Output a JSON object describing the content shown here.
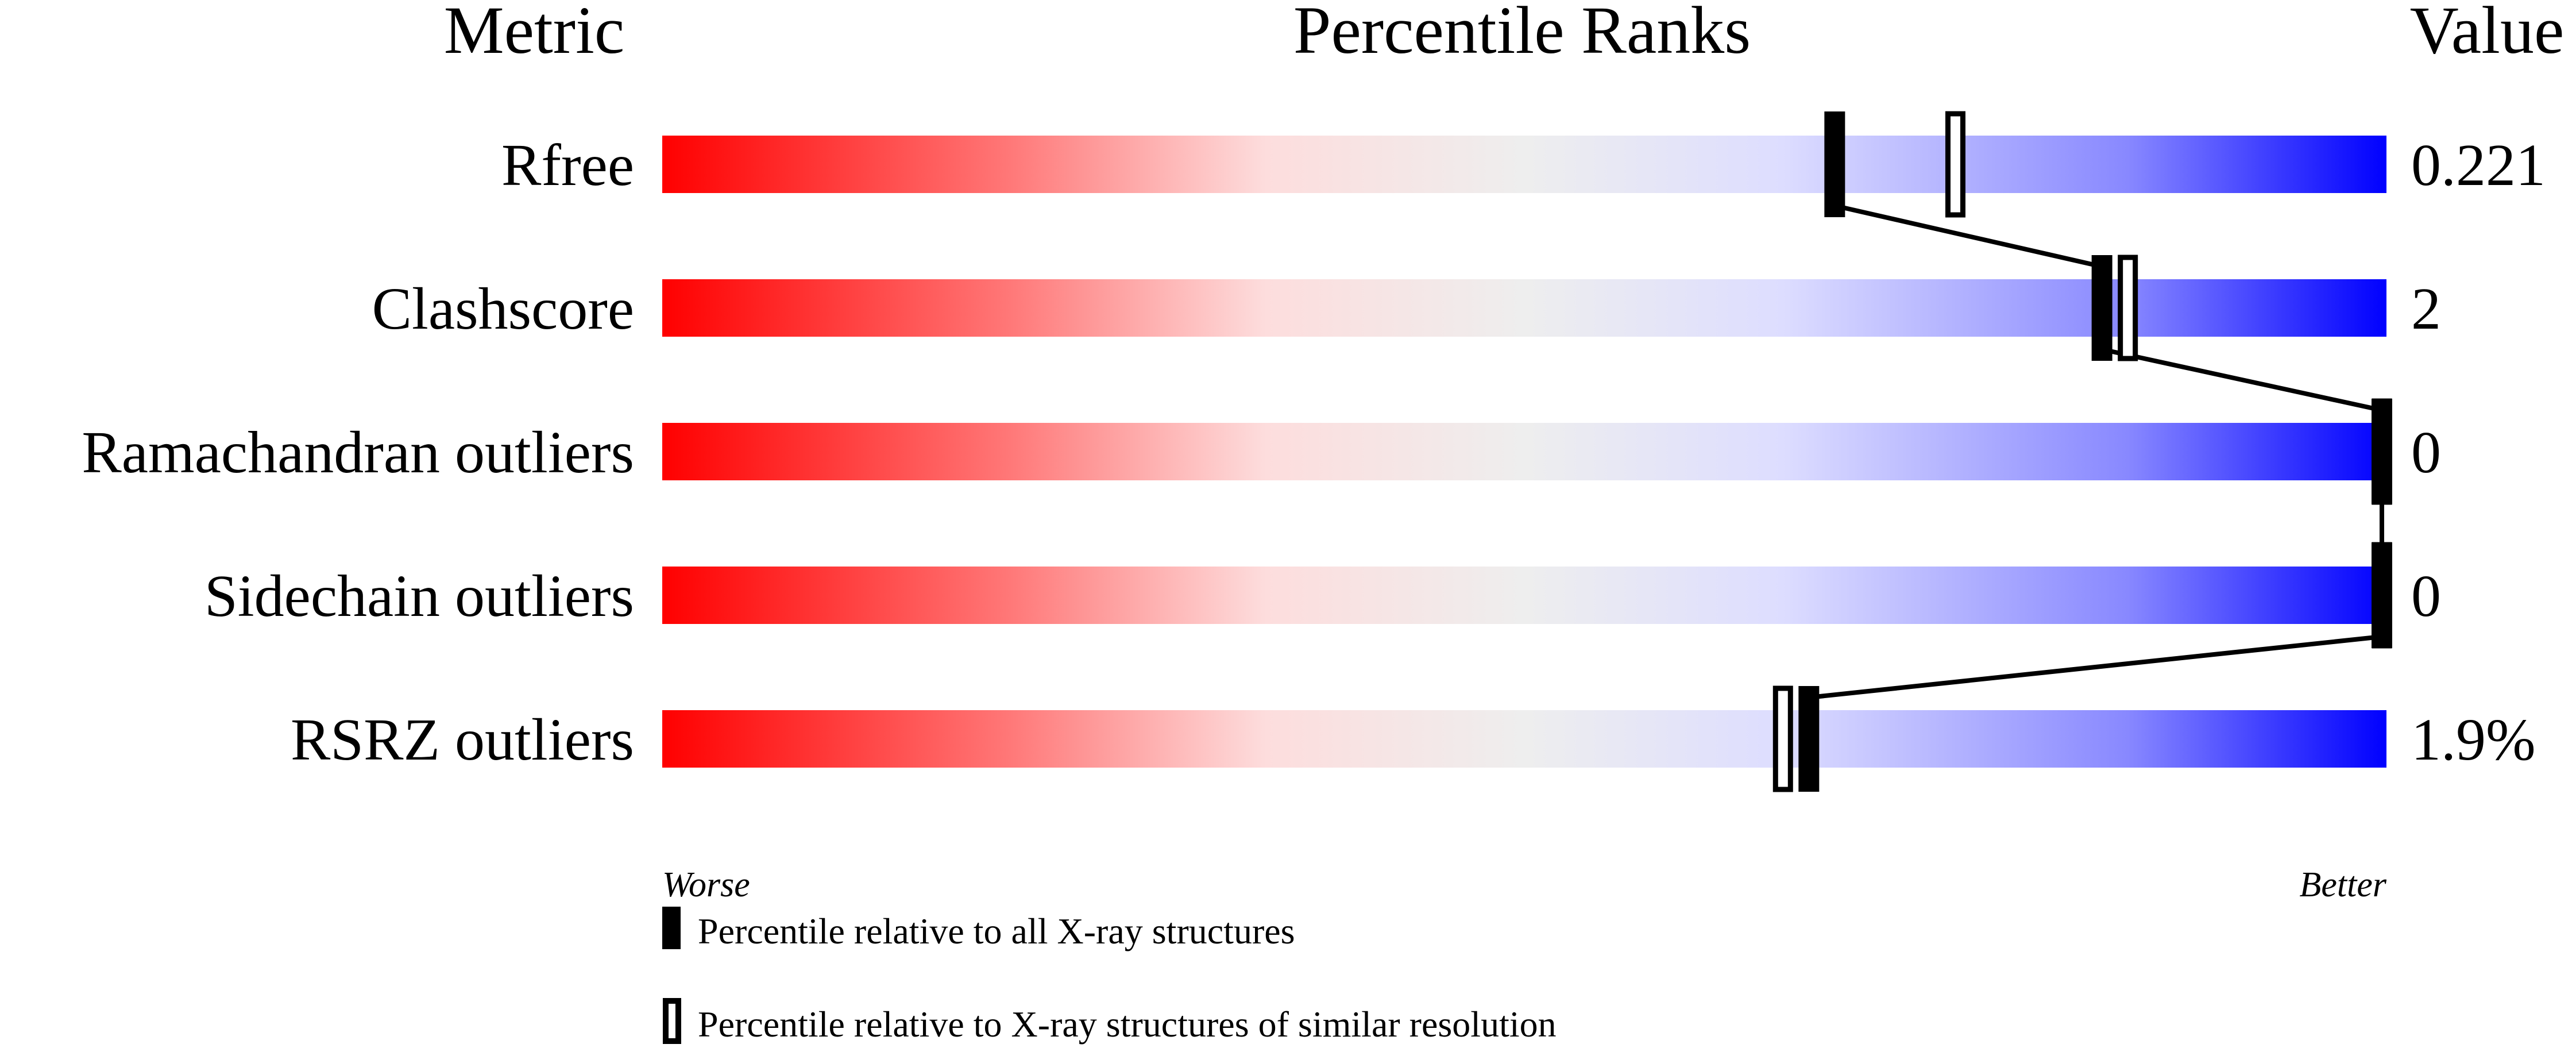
{
  "chart_data": {
    "type": "percentile-slider",
    "headers": {
      "metric": "Metric",
      "ranks": "Percentile Ranks",
      "value": "Value"
    },
    "axis": {
      "worse_label": "Worse",
      "better_label": "Better",
      "range": [
        0,
        100
      ]
    },
    "gradient_colors": [
      "#ff0000",
      "#ff7777",
      "#fddddd",
      "#eeeeee",
      "#ddddff",
      "#8888ff",
      "#0000ff"
    ],
    "rows": [
      {
        "metric": "Rfree",
        "value": "0.221",
        "percentile_all": 68,
        "percentile_similar": 75
      },
      {
        "metric": "Clashscore",
        "value": "2",
        "percentile_all": 83.5,
        "percentile_similar": 85
      },
      {
        "metric": "Ramachandran outliers",
        "value": "0",
        "percentile_all": 100,
        "percentile_similar": 100
      },
      {
        "metric": "Sidechain outliers",
        "value": "0",
        "percentile_all": 100,
        "percentile_similar": 100
      },
      {
        "metric": "RSRZ outliers",
        "value": "1.9%",
        "percentile_all": 66.5,
        "percentile_similar": 65
      }
    ],
    "legend": {
      "filled": "Percentile relative to all X-ray structures",
      "open": "Percentile relative to X-ray structures of similar resolution"
    }
  }
}
